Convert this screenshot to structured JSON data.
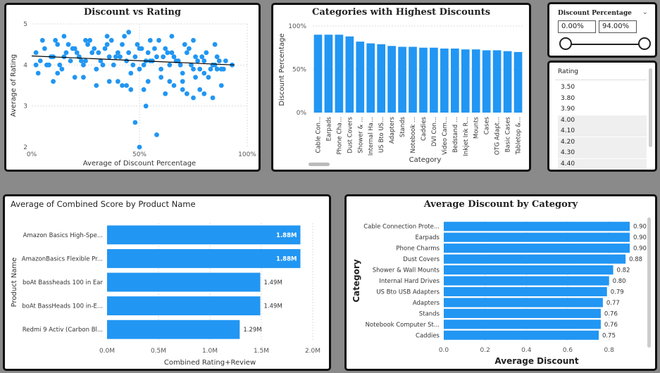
{
  "scatter_panel": {
    "title": "Discount vs Rating",
    "chart_data": {
      "type": "scatter",
      "title": "Discount vs Rating",
      "xlabel": "Average of Discount Percentage",
      "ylabel": "Average of Rating",
      "xlim": [
        0,
        100
      ],
      "ylim": [
        2,
        5
      ],
      "x_ticks": [
        "0%",
        "50%",
        "100%"
      ],
      "y_ticks": [
        "2",
        "3",
        "4",
        "5"
      ],
      "trend_line": {
        "x": [
          0,
          94
        ],
        "y": [
          4.22,
          4.0
        ]
      },
      "series": [
        {
          "x": [
            2,
            4,
            6,
            8,
            10,
            12,
            14,
            16,
            18,
            20,
            22,
            24,
            26,
            28,
            30,
            32,
            34,
            36,
            38,
            40,
            42,
            44,
            46,
            48,
            50,
            52,
            54,
            56,
            58,
            60,
            62,
            64,
            66,
            68,
            70,
            72,
            74,
            76,
            78,
            80,
            82,
            84,
            86,
            88,
            90,
            5,
            9,
            13,
            17,
            21,
            25,
            29,
            33,
            37,
            41,
            45,
            49,
            53,
            57,
            61,
            65,
            69,
            73,
            77,
            81,
            85,
            89,
            3,
            7,
            11,
            15,
            19,
            23,
            27,
            31,
            35,
            39,
            43,
            47,
            51,
            55,
            59,
            63,
            67,
            71,
            75,
            79,
            83,
            87,
            93,
            10,
            20,
            30,
            40,
            50,
            60,
            70,
            80,
            15,
            25,
            35,
            45,
            55,
            65,
            75,
            85,
            48,
            50,
            53,
            58,
            62,
            70,
            75,
            80,
            42,
            46,
            54,
            66,
            72,
            78,
            84,
            88,
            2,
            12,
            24,
            36,
            44,
            52,
            64,
            76,
            86
          ],
          "y": [
            4.3,
            4.1,
            4.4,
            4.0,
            4.2,
            4.5,
            3.9,
            4.3,
            4.1,
            4.4,
            4.2,
            4.0,
            4.5,
            4.3,
            3.9,
            4.1,
            4.4,
            4.2,
            4.0,
            4.3,
            4.5,
            4.1,
            3.8,
            4.2,
            4.4,
            4.0,
            4.3,
            4.1,
            4.2,
            3.9,
            4.4,
            4.0,
            4.2,
            4.1,
            3.8,
            4.3,
            4.0,
            4.2,
            3.9,
            4.1,
            3.7,
            4.0,
            4.2,
            3.9,
            4.1,
            4.6,
            4.2,
            4.0,
            4.5,
            4.3,
            4.1,
            4.4,
            4.0,
            4.6,
            4.2,
            4.3,
            4.5,
            4.1,
            4.4,
            4.2,
            4.3,
            4.0,
            4.4,
            4.1,
            4.3,
            4.0,
            3.9,
            3.8,
            4.0,
            4.6,
            4.2,
            4.4,
            4.1,
            4.6,
            4.3,
            4.5,
            4.2,
            4.7,
            4.0,
            4.4,
            4.1,
            4.6,
            4.3,
            4.1,
            4.5,
            3.9,
            4.2,
            3.9,
            4.1,
            4.0,
            3.6,
            3.7,
            3.5,
            3.6,
            3.9,
            3.7,
            3.6,
            3.8,
            4.7,
            4.6,
            4.7,
            4.8,
            4.6,
            4.7,
            4.6,
            4.5,
            2.6,
            2.0,
            3.0,
            2.3,
            3.3,
            3.4,
            3.2,
            3.3,
            3.5,
            3.4,
            3.6,
            3.5,
            3.3,
            3.4,
            3.2,
            3.5,
            4.0,
            3.8,
            3.7,
            3.6,
            3.5,
            3.4,
            3.6,
            3.7,
            3.9
          ]
        }
      ]
    }
  },
  "category_panel": {
    "title": "Categories with Highest Discounts",
    "chart_data": {
      "type": "bar",
      "title": "Categories with Highest Discounts",
      "xlabel": "Category",
      "ylabel": "Discount Percentage",
      "ylim": [
        0,
        100
      ],
      "y_ticks": [
        "0%",
        "50%",
        "100%"
      ],
      "categories": [
        "Cable Con...",
        "Earpads",
        "Phone Cha...",
        "Dust Covers",
        "Shower & ...",
        "Internal Ha...",
        "US Bto US...",
        "Adapters",
        "Stands",
        "Notebook ...",
        "Caddies",
        "DVI Con...",
        "Video Cam...",
        "Bedstand ...",
        "Inkjet Ink R...",
        "Mounts",
        "Cases",
        "OTG Adapt...",
        "Basic Cases",
        "Tabletop &..."
      ],
      "values": [
        90,
        90,
        90,
        88,
        82,
        80,
        79,
        77,
        76,
        76,
        75,
        75,
        74,
        74,
        73,
        73,
        72,
        72,
        71,
        70
      ]
    }
  },
  "slicer": {
    "title": "Discount Percentage",
    "min_value": "0.00%",
    "max_value": "94.00%",
    "chevron_icon": "chevron-down-icon"
  },
  "rating_list": {
    "header": "Rating",
    "items": [
      "3.50",
      "3.80",
      "3.90",
      "4.00",
      "4.10",
      "4.20",
      "4.30",
      "4.40"
    ]
  },
  "combined_panel": {
    "title": "Average of Combined Score by Product Name",
    "chart_data": {
      "type": "bar",
      "orientation": "horizontal",
      "title": "Average of Combined Score by Product Name",
      "xlabel": "Combined Rating+Review",
      "ylabel": "Product Name",
      "xlim": [
        0,
        2
      ],
      "x_ticks": [
        "0.0M",
        "0.5M",
        "1.0M",
        "1.5M",
        "2.0M"
      ],
      "categories": [
        "Amazon Basics High-Spe...",
        "AmazonBasics Flexible Pr...",
        "boAt Bassheads 100 in Ear",
        "boAt BassHeads 100 in-E...",
        "Redmi 9 Activ (Carbon Bl..."
      ],
      "values": [
        1.88,
        1.88,
        1.49,
        1.49,
        1.29
      ],
      "data_labels": [
        "1.88M",
        "1.88M",
        "1.49M",
        "1.49M",
        "1.29M"
      ]
    }
  },
  "avg_panel": {
    "title": "Average Discount by Category",
    "chart_data": {
      "type": "bar",
      "orientation": "horizontal",
      "title": "Average Discount by Category",
      "xlabel": "Average Discount",
      "ylabel": "Category",
      "xlim": [
        0,
        0.9
      ],
      "x_ticks": [
        "0.0",
        "0.2",
        "0.4",
        "0.6",
        "0.8"
      ],
      "categories": [
        "Cable Connection Prote...",
        "Earpads",
        "Phone Charms",
        "Dust Covers",
        "Shower & Wall Mounts",
        "Internal Hard Drives",
        "US Bto USB Adapters",
        "Adapters",
        "Stands",
        "Notebook Computer St...",
        "Caddies"
      ],
      "values": [
        0.9,
        0.9,
        0.9,
        0.88,
        0.82,
        0.8,
        0.79,
        0.77,
        0.76,
        0.76,
        0.75
      ],
      "data_labels": [
        "0.90",
        "0.90",
        "0.90",
        "0.88",
        "0.82",
        "0.80",
        "0.79",
        "0.77",
        "0.76",
        "0.76",
        "0.75"
      ]
    }
  },
  "colors": {
    "bar": "#2196f3",
    "point": "#2196f3",
    "trend": "#000000"
  }
}
